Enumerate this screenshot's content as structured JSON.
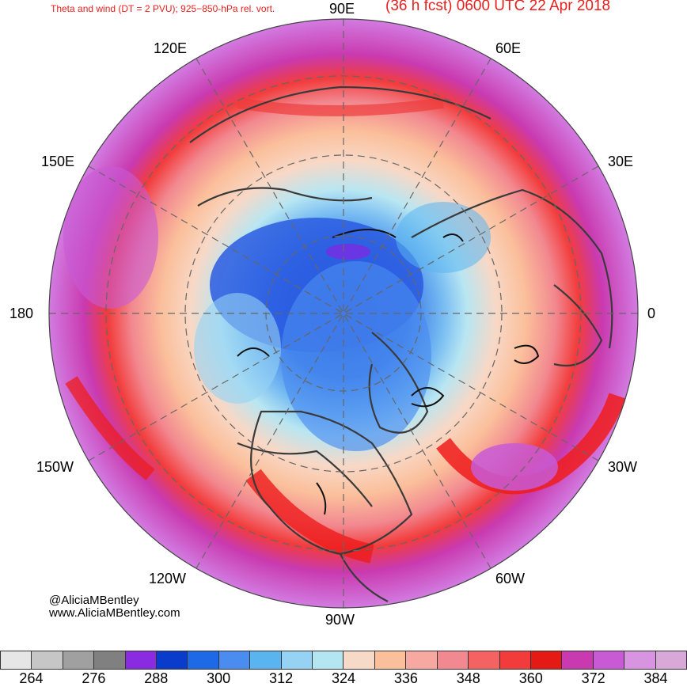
{
  "title_left": "Theta and wind (DT = 2 PVU); 925−850-hPa rel. vort.",
  "title_right": "(36 h fcst) 0600 UTC 22 Apr 2018",
  "longitude_labels": {
    "n90e": "90E",
    "n60e": "60E",
    "n120e": "120E",
    "n150e": "150E",
    "n30e": "30E",
    "n180": "180",
    "n0": "0",
    "n150w": "150W",
    "n30w": "30W",
    "n120w": "120W",
    "n60w": "60W",
    "n90w": "90W"
  },
  "credit": {
    "handle": "@AliciaMBentley",
    "website": "www.AliciaMBentley.com"
  },
  "colorbar": {
    "colors": [
      "#e6e6e6",
      "#c6c6c6",
      "#a0a0a0",
      "#808080",
      "#8a2be2",
      "#0a3ccc",
      "#1e6ae6",
      "#4a8cf0",
      "#5ab4f0",
      "#96d2f4",
      "#b4e6f2",
      "#f6d9c6",
      "#fbbf9b",
      "#f7a8a0",
      "#f28890",
      "#f56262",
      "#f23c3c",
      "#e61a14",
      "#c93ab0",
      "#c85ad6",
      "#d894e0",
      "#d8a8d8"
    ],
    "tick_labels": [
      "264",
      "276",
      "288",
      "300",
      "312",
      "324",
      "336",
      "348",
      "360",
      "372",
      "384"
    ]
  }
}
